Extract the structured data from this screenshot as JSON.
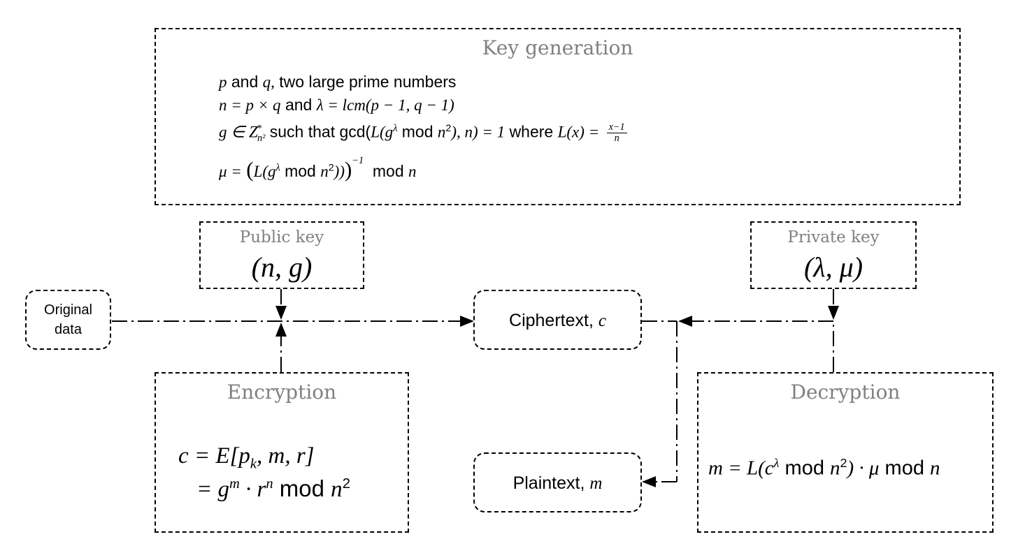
{
  "key_generation": {
    "title": "Key generation",
    "line1_pq": "p",
    "line1_and": "and",
    "line1_q": "q,",
    "line1_text": "two large prime numbers",
    "line2_a": "n = p × q",
    "line2_and": "and",
    "line2_b": "λ = lcm(p − 1, q − 1)",
    "line3_g": "g ∈ Z",
    "line3_sub": "n²",
    "line3_sup": "*",
    "line3_such": "such that gcd(",
    "line3_L": "L",
    "line3_gl": "(g",
    "line3_lambda": "λ",
    "line3_mod": "mod",
    "line3_n2": "n",
    "line3_n2sup": "2",
    "line3_end": "), n) = 1",
    "line3_where": "where",
    "line3_Lx": "L(x) =",
    "line3_frac_num": "x−1",
    "line3_frac_den": "n",
    "line4_mu": "μ =",
    "line4_inner_L": "L",
    "line4_g": "(g",
    "line4_lambda": "λ",
    "line4_mod": "mod",
    "line4_n": "n",
    "line4_n2sup": "2",
    "line4_close": "))",
    "line4_inv": "−1",
    "line4_mod2": "mod",
    "line4_n_last": "n"
  },
  "public_key": {
    "title": "Public key",
    "value": "(n, g)"
  },
  "private_key": {
    "title": "Private key",
    "value": "(λ, μ)"
  },
  "original_data": {
    "line1": "Original",
    "line2": "data"
  },
  "ciphertext": {
    "label": "Ciphertext,",
    "var": "c"
  },
  "plaintext": {
    "label": "Plaintext,",
    "var": "m"
  },
  "encryption": {
    "title": "Encryption",
    "eq1": "c = E[p",
    "eq1_sub": "k",
    "eq1_end": ", m, r]",
    "eq2_a": "= g",
    "eq2_m": "m",
    "eq2_b": " · r",
    "eq2_n": "n",
    "eq2_mod": "mod",
    "eq2_n2": "n",
    "eq2_sup": "2"
  },
  "decryption": {
    "title": "Decryption",
    "eq_a": "m = L(c",
    "eq_lambda": "λ",
    "eq_mod": "mod",
    "eq_n": "n",
    "eq_sup": "2",
    "eq_b": ") · μ",
    "eq_mod2": "mod",
    "eq_n_last": "n"
  }
}
